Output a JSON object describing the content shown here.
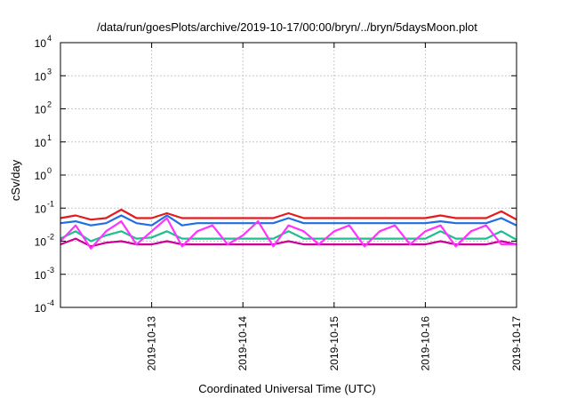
{
  "chart_data": {
    "type": "line",
    "title": "/data/run/goesPlots/archive/2019-10-17/00:00/bryn/../bryn/5daysMoon.plot",
    "xlabel": "Coordinated Universal Time (UTC)",
    "ylabel": "cSv/day",
    "yscale": "log",
    "ylim": [
      0.0001,
      10000
    ],
    "y_ticks": [
      {
        "value": 0.0001,
        "base": "10",
        "exp": "-4"
      },
      {
        "value": 0.001,
        "base": "10",
        "exp": "-3"
      },
      {
        "value": 0.01,
        "base": "10",
        "exp": "-2"
      },
      {
        "value": 0.1,
        "base": "10",
        "exp": "-1"
      },
      {
        "value": 1,
        "base": "10",
        "exp": "0"
      },
      {
        "value": 10,
        "base": "10",
        "exp": "1"
      },
      {
        "value": 100,
        "base": "10",
        "exp": "2"
      },
      {
        "value": 1000,
        "base": "10",
        "exp": "3"
      },
      {
        "value": 10000,
        "base": "10",
        "exp": "4"
      }
    ],
    "xlim": [
      "2019-10-12T00:00",
      "2019-10-17T00:00"
    ],
    "x_ticks": [
      "2019-10-13",
      "2019-10-14",
      "2019-10-15",
      "2019-10-16",
      "2019-10-17"
    ],
    "grid": true,
    "legend": "none",
    "x": [
      "2019-10-12T00:00",
      "2019-10-12T04:00",
      "2019-10-12T08:00",
      "2019-10-12T12:00",
      "2019-10-12T16:00",
      "2019-10-12T20:00",
      "2019-10-13T00:00",
      "2019-10-13T04:00",
      "2019-10-13T08:00",
      "2019-10-13T12:00",
      "2019-10-13T16:00",
      "2019-10-13T20:00",
      "2019-10-14T00:00",
      "2019-10-14T04:00",
      "2019-10-14T08:00",
      "2019-10-14T12:00",
      "2019-10-14T16:00",
      "2019-10-14T20:00",
      "2019-10-15T00:00",
      "2019-10-15T04:00",
      "2019-10-15T08:00",
      "2019-10-15T12:00",
      "2019-10-15T16:00",
      "2019-10-15T20:00",
      "2019-10-16T00:00",
      "2019-10-16T04:00",
      "2019-10-16T08:00",
      "2019-10-16T12:00",
      "2019-10-16T16:00",
      "2019-10-16T20:00",
      "2019-10-17T00:00"
    ],
    "series": [
      {
        "color": "#e41a1c",
        "values": [
          0.05,
          0.06,
          0.045,
          0.05,
          0.09,
          0.05,
          0.05,
          0.07,
          0.05,
          0.05,
          0.05,
          0.05,
          0.05,
          0.05,
          0.05,
          0.07,
          0.05,
          0.05,
          0.05,
          0.05,
          0.05,
          0.05,
          0.05,
          0.05,
          0.05,
          0.06,
          0.05,
          0.05,
          0.05,
          0.08,
          0.045
        ]
      },
      {
        "color": "#1f6fe0",
        "values": [
          0.035,
          0.04,
          0.03,
          0.035,
          0.06,
          0.035,
          0.03,
          0.06,
          0.03,
          0.035,
          0.035,
          0.035,
          0.035,
          0.035,
          0.035,
          0.05,
          0.035,
          0.035,
          0.035,
          0.035,
          0.035,
          0.035,
          0.035,
          0.035,
          0.035,
          0.04,
          0.035,
          0.035,
          0.035,
          0.05,
          0.03
        ]
      },
      {
        "color": "#1fbf8f",
        "values": [
          0.012,
          0.02,
          0.01,
          0.015,
          0.02,
          0.012,
          0.013,
          0.02,
          0.012,
          0.012,
          0.012,
          0.012,
          0.012,
          0.012,
          0.012,
          0.02,
          0.012,
          0.012,
          0.012,
          0.012,
          0.012,
          0.012,
          0.012,
          0.012,
          0.012,
          0.02,
          0.012,
          0.012,
          0.012,
          0.02,
          0.011
        ]
      },
      {
        "color": "#cc0099",
        "values": [
          0.008,
          0.012,
          0.007,
          0.009,
          0.01,
          0.008,
          0.008,
          0.01,
          0.008,
          0.008,
          0.008,
          0.008,
          0.008,
          0.008,
          0.008,
          0.01,
          0.008,
          0.008,
          0.008,
          0.008,
          0.008,
          0.008,
          0.008,
          0.008,
          0.008,
          0.01,
          0.008,
          0.008,
          0.008,
          0.01,
          0.008
        ]
      },
      {
        "color": "#ff33ff",
        "values": [
          0.01,
          0.03,
          0.006,
          0.02,
          0.04,
          0.008,
          0.02,
          0.05,
          0.007,
          0.02,
          0.03,
          0.008,
          0.015,
          0.04,
          0.007,
          0.03,
          0.02,
          0.008,
          0.02,
          0.03,
          0.007,
          0.02,
          0.03,
          0.008,
          0.02,
          0.03,
          0.007,
          0.02,
          0.03,
          0.008,
          0.008
        ]
      }
    ]
  }
}
